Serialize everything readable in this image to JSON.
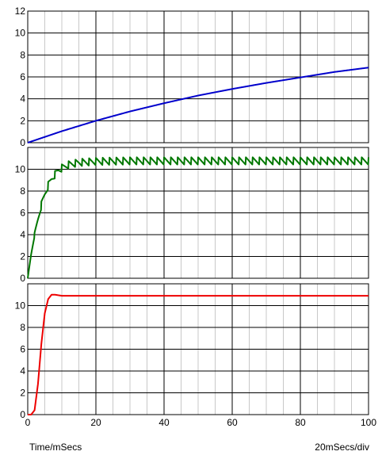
{
  "chart_data": {
    "type": "line",
    "xlabel": "Time/mSecs",
    "scale_label": "20mSecs/div",
    "x_ticks": [
      "0",
      "20",
      "40",
      "60",
      "80",
      "100"
    ],
    "xlim": [
      0,
      100
    ],
    "grid": true,
    "panels": [
      {
        "name": "panel-top",
        "ylim": [
          0,
          12
        ],
        "y_ticks": [
          "0",
          "2",
          "4",
          "6",
          "8",
          "10",
          "12"
        ],
        "series": [
          {
            "color": "#0000cc",
            "x": [
              0,
              10,
              20,
              30,
              40,
              50,
              60,
              70,
              80,
              90,
              100
            ],
            "y": [
              0,
              1.05,
              2.0,
              2.85,
              3.6,
              4.3,
              4.9,
              5.45,
              5.95,
              6.45,
              6.85
            ]
          }
        ]
      },
      {
        "name": "panel-middle",
        "ylim": [
          0,
          12
        ],
        "y_ticks": [
          "0",
          "2",
          "4",
          "6",
          "8",
          "10"
        ],
        "series": [
          {
            "color": "#007700",
            "waveform": "sawtooth",
            "ripple_period_ms": 2.0,
            "ripple_amplitude": 0.7,
            "x": [
              0,
              1,
              2,
              3,
              4,
              5,
              6,
              7,
              8,
              9,
              10,
              12,
              15,
              20,
              30,
              50,
              100
            ],
            "y": [
              0,
              2.2,
              4.0,
              5.4,
              6.7,
              7.7,
              8.5,
              9.1,
              9.5,
              9.9,
              10.1,
              10.4,
              10.6,
              10.7,
              10.75,
              10.75,
              10.75
            ]
          }
        ]
      },
      {
        "name": "panel-bottom",
        "ylim": [
          0,
          12
        ],
        "y_ticks": [
          "0",
          "2",
          "4",
          "6",
          "8",
          "10"
        ],
        "series": [
          {
            "color": "#ee0000",
            "x": [
              0,
              1,
              2,
              3,
              4,
              5,
              6,
              7,
              8,
              9,
              10,
              12,
              100
            ],
            "y": [
              0,
              0,
              0.4,
              2.8,
              6.5,
              9.3,
              10.6,
              11.0,
              11.0,
              10.95,
              10.9,
              10.9,
              10.9
            ]
          }
        ]
      }
    ]
  }
}
